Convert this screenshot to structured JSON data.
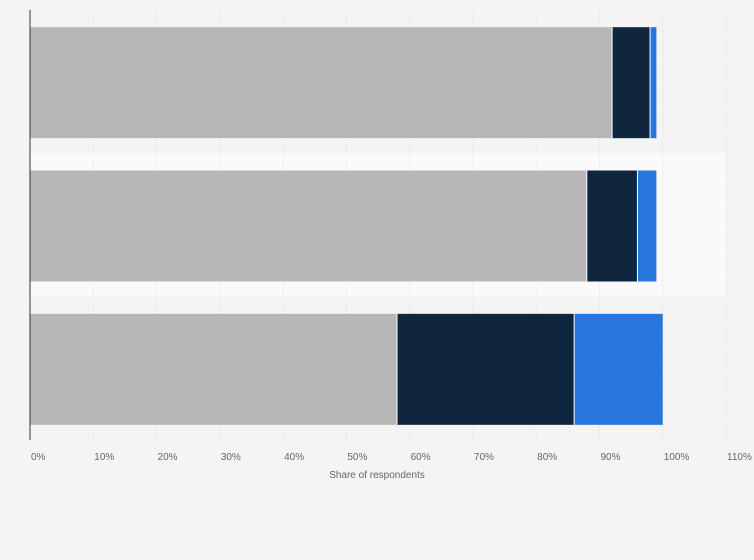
{
  "chart_data": {
    "type": "bar",
    "orientation": "horizontal",
    "stacked": true,
    "title": "",
    "xlabel": "Share of respondents",
    "ylabel": "",
    "xlim": [
      0,
      110
    ],
    "x_ticks": [
      "0%",
      "10%",
      "20%",
      "30%",
      "40%",
      "50%",
      "60%",
      "70%",
      "80%",
      "90%",
      "100%",
      "110%"
    ],
    "categories": [
      "",
      "",
      ""
    ],
    "series": [
      {
        "color": "#b7b7b7",
        "values": [
          92,
          88,
          58
        ]
      },
      {
        "color": "#0f263e",
        "values": [
          6,
          8,
          28
        ]
      },
      {
        "color": "#2776dc",
        "values": [
          1,
          3,
          14
        ]
      }
    ],
    "grid": true,
    "legend": "none"
  }
}
